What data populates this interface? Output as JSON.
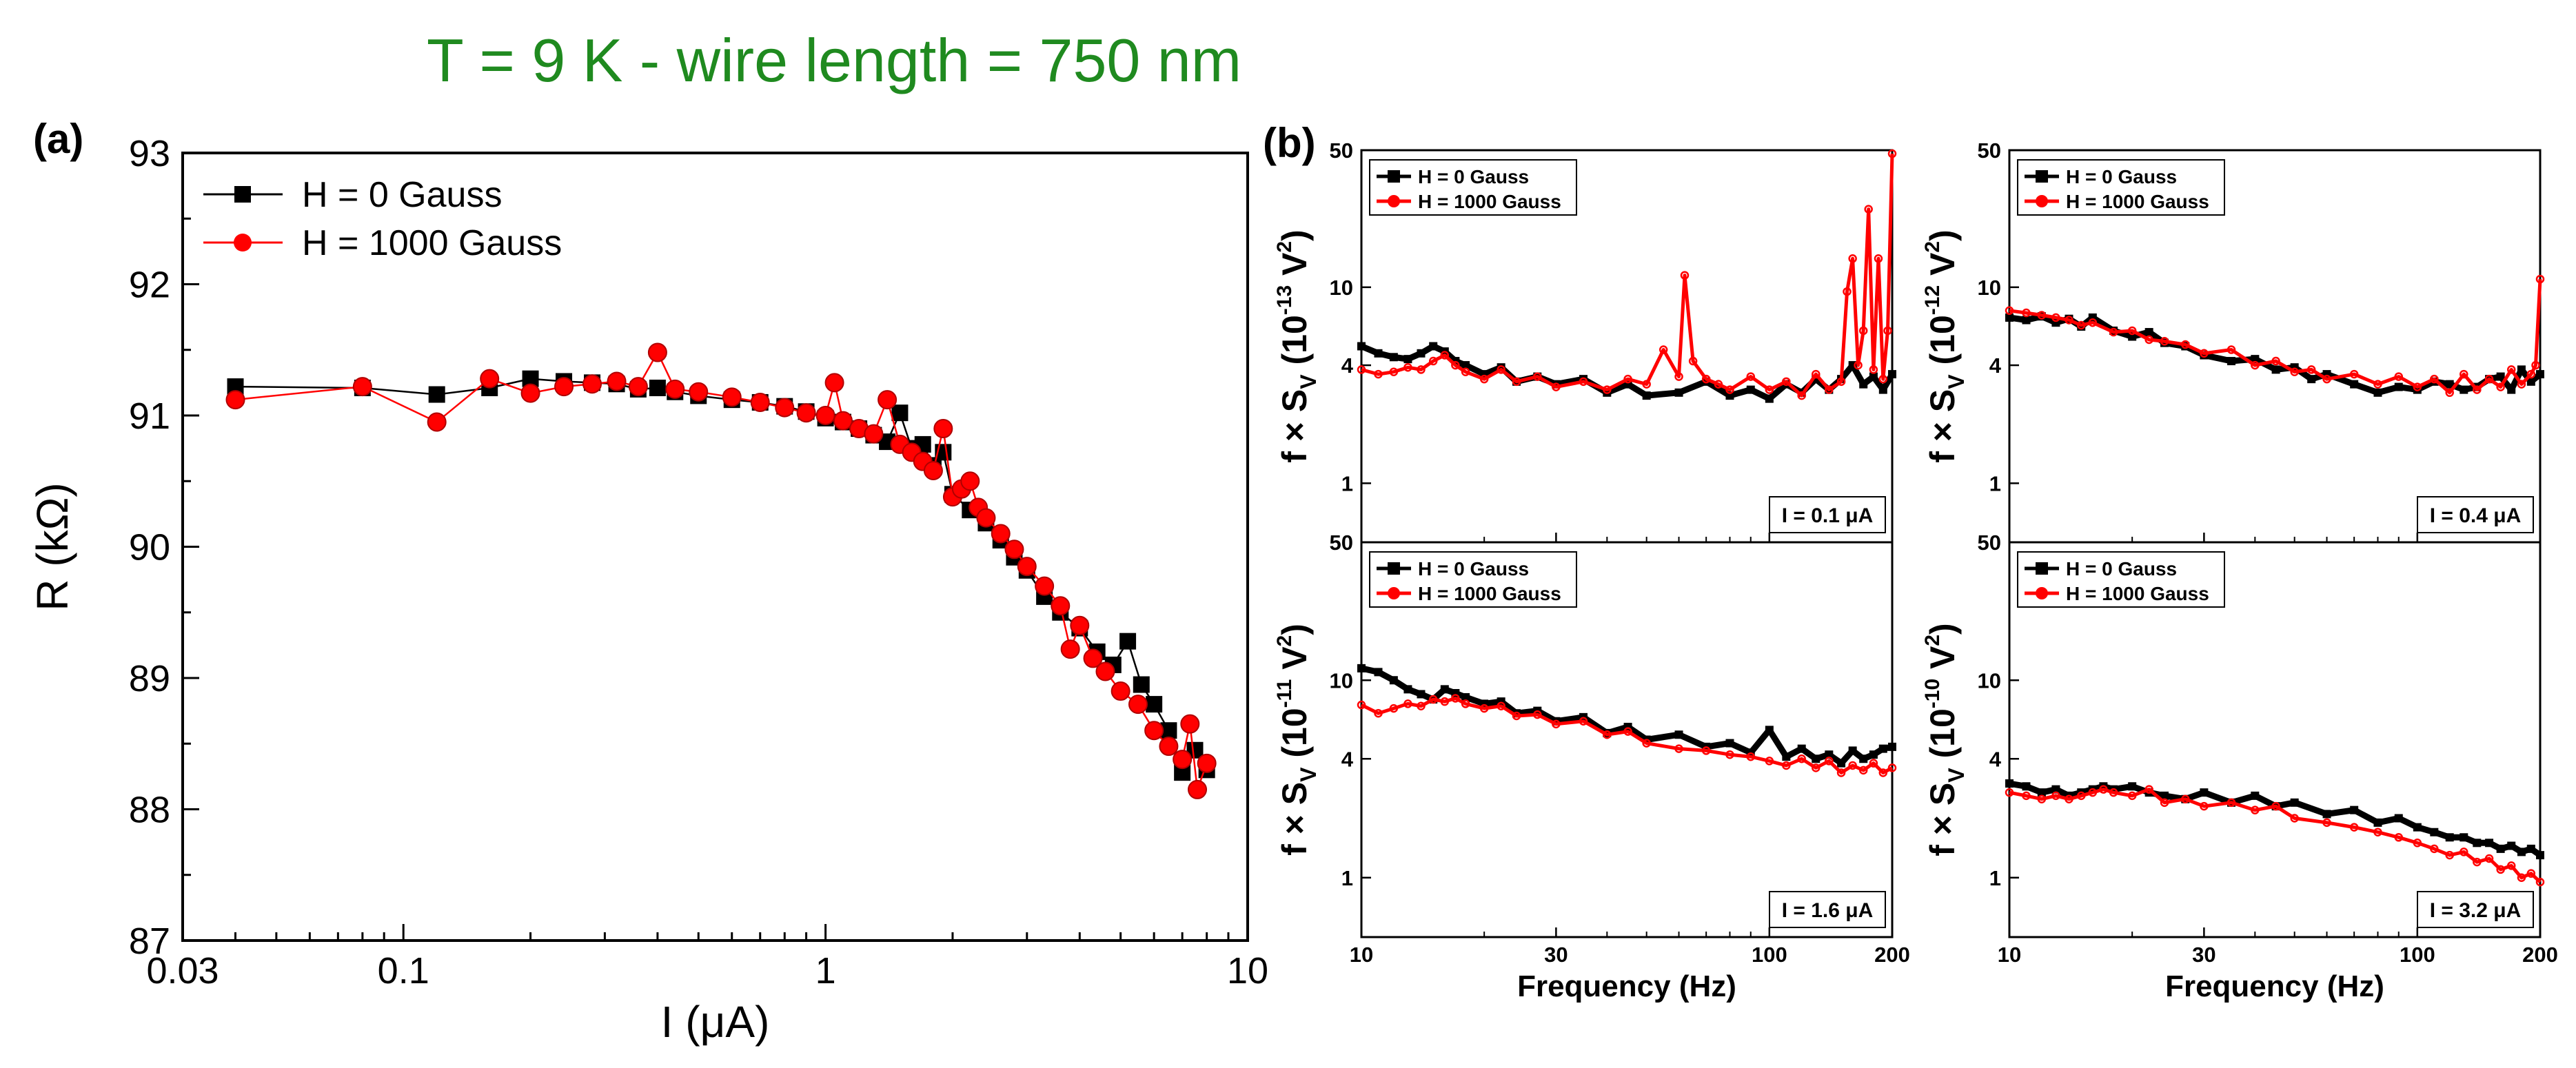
{
  "title": "T = 9 K  -  wire length = 750 nm",
  "colors": {
    "title": "#1f8a1f",
    "series_h0": "#000000",
    "series_h1000": "#ff0000",
    "axes": "#000000"
  },
  "chart_data": [
    {
      "panel_label": "(a)",
      "type": "scatter",
      "xscale": "log",
      "xlabel": "I (μA)",
      "ylabel": "R (kΩ)",
      "xlim": [
        0.03,
        10
      ],
      "ylim": [
        87,
        93
      ],
      "xticks": [
        "0.03",
        "0.1",
        "1",
        "10"
      ],
      "yticks": [
        "87",
        "88",
        "89",
        "90",
        "91",
        "92",
        "93"
      ],
      "legend_position": "top-left",
      "series": [
        {
          "name": "H = 0 Gauss",
          "marker": "square",
          "color": "#000000",
          "x": [
            0.04,
            0.08,
            0.12,
            0.16,
            0.2,
            0.24,
            0.28,
            0.32,
            0.36,
            0.4,
            0.44,
            0.5,
            0.6,
            0.7,
            0.8,
            0.9,
            1.0,
            1.1,
            1.2,
            1.3,
            1.4,
            1.5,
            1.6,
            1.7,
            1.8,
            1.9,
            2.0,
            2.2,
            2.4,
            2.6,
            2.8,
            3.0,
            3.3,
            3.6,
            4.0,
            4.4,
            4.8,
            5.2,
            5.6,
            6.0,
            6.5,
            7.0,
            7.5,
            8.0
          ],
          "y": [
            91.22,
            91.21,
            91.16,
            91.21,
            91.28,
            91.26,
            91.25,
            91.24,
            91.2,
            91.21,
            91.18,
            91.15,
            91.12,
            91.1,
            91.07,
            91.03,
            90.98,
            90.95,
            90.9,
            90.85,
            90.8,
            91.02,
            90.75,
            90.78,
            90.62,
            90.72,
            90.4,
            90.28,
            90.18,
            90.05,
            89.92,
            89.82,
            89.62,
            89.5,
            89.38,
            89.2,
            89.1,
            89.28,
            88.95,
            88.8,
            88.6,
            88.28,
            88.45,
            88.3
          ]
        },
        {
          "name": "H = 1000 Gauss",
          "marker": "circle",
          "color": "#ff0000",
          "x": [
            0.04,
            0.08,
            0.12,
            0.16,
            0.2,
            0.24,
            0.28,
            0.32,
            0.36,
            0.4,
            0.44,
            0.5,
            0.6,
            0.7,
            0.8,
            0.9,
            1.0,
            1.05,
            1.1,
            1.2,
            1.3,
            1.4,
            1.5,
            1.6,
            1.7,
            1.8,
            1.9,
            2.0,
            2.1,
            2.2,
            2.3,
            2.4,
            2.6,
            2.8,
            3.0,
            3.3,
            3.6,
            3.8,
            4.0,
            4.3,
            4.6,
            5.0,
            5.5,
            6.0,
            6.5,
            7.0,
            7.3,
            7.6,
            8.0
          ],
          "y": [
            91.12,
            91.22,
            90.95,
            91.28,
            91.17,
            91.22,
            91.24,
            91.26,
            91.22,
            91.48,
            91.2,
            91.18,
            91.14,
            91.1,
            91.06,
            91.02,
            91.0,
            91.25,
            90.96,
            90.9,
            90.86,
            91.12,
            90.78,
            90.72,
            90.65,
            90.58,
            90.9,
            90.38,
            90.44,
            90.5,
            90.3,
            90.22,
            90.1,
            89.98,
            89.85,
            89.7,
            89.55,
            89.22,
            89.4,
            89.15,
            89.05,
            88.9,
            88.8,
            88.6,
            88.48,
            88.38,
            88.65,
            88.15,
            88.35
          ]
        }
      ]
    },
    {
      "panel_label": "(b)",
      "type": "line",
      "xscale": "log",
      "yscale": "log",
      "xlabel": "Frequency (Hz)",
      "ylabel_prefix": "f × S",
      "ylabel_sub": "V",
      "xlim": [
        10,
        200
      ],
      "ylim": [
        0.5,
        50
      ],
      "xticks": [
        "10",
        "30",
        "100",
        "200"
      ],
      "yticks": [
        "1",
        "4",
        "10",
        "50"
      ],
      "legend": [
        "H = 0 Gauss",
        "H = 1000 Gauss"
      ],
      "subplots": [
        {
          "annotation": "I = 0.1 μA",
          "ylabel_unit": "(10",
          "ylabel_exp": "-13",
          "ylabel_tail": "V",
          "ylabel_pow": "2",
          "ylabel_close": ")",
          "yticks": [
            "1",
            "4",
            "10",
            "50"
          ],
          "series": [
            {
              "name": "H = 0 Gauss",
              "x": [
                10,
                11,
                12,
                13,
                14,
                15,
                16,
                17,
                18,
                20,
                22,
                24,
                27,
                30,
                35,
                40,
                45,
                50,
                60,
                70,
                80,
                90,
                100,
                110,
                120,
                130,
                140,
                150,
                160,
                170,
                180,
                190,
                200
              ],
              "y": [
                5.0,
                4.6,
                4.4,
                4.3,
                4.6,
                5.0,
                4.7,
                4.2,
                4.0,
                3.6,
                3.9,
                3.3,
                3.5,
                3.2,
                3.4,
                2.9,
                3.2,
                2.8,
                2.9,
                3.3,
                2.8,
                3.0,
                2.7,
                3.2,
                2.9,
                3.4,
                3.0,
                3.4,
                4.0,
                3.2,
                3.5,
                3.0,
                3.6
              ]
            },
            {
              "name": "H = 1000 Gauss",
              "x": [
                10,
                11,
                12,
                13,
                14,
                15,
                16,
                17,
                18,
                20,
                22,
                24,
                27,
                30,
                35,
                40,
                45,
                50,
                55,
                60,
                62,
                65,
                70,
                75,
                80,
                90,
                100,
                110,
                120,
                130,
                140,
                150,
                155,
                160,
                165,
                170,
                175,
                180,
                185,
                190,
                195,
                200
              ],
              "y": [
                3.8,
                3.6,
                3.7,
                3.9,
                3.8,
                4.2,
                4.5,
                4.0,
                3.7,
                3.4,
                3.8,
                3.3,
                3.5,
                3.1,
                3.3,
                3.0,
                3.4,
                3.2,
                4.8,
                3.5,
                11.5,
                4.2,
                3.4,
                3.2,
                3.0,
                3.5,
                3.0,
                3.3,
                2.8,
                3.6,
                3.0,
                3.3,
                9.5,
                14.0,
                4.0,
                6.0,
                25.0,
                3.8,
                14.0,
                3.4,
                6.0,
                48.0
              ]
            }
          ]
        },
        {
          "annotation": "I = 0.4 μA",
          "ylabel_unit": "(10",
          "ylabel_exp": "-12",
          "ylabel_tail": "V",
          "ylabel_pow": "2",
          "ylabel_close": ")",
          "yticks": [
            "1",
            "4",
            "10",
            "50"
          ],
          "series": [
            {
              "name": "H = 0 Gauss",
              "x": [
                10,
                11,
                12,
                13,
                14,
                15,
                16,
                18,
                20,
                22,
                24,
                27,
                30,
                35,
                40,
                45,
                50,
                55,
                60,
                70,
                80,
                90,
                100,
                110,
                120,
                130,
                140,
                150,
                160,
                170,
                180,
                190,
                200
              ],
              "y": [
                7.0,
                6.8,
                7.1,
                6.6,
                6.9,
                6.3,
                7.0,
                6.0,
                5.6,
                5.9,
                5.2,
                5.0,
                4.5,
                4.2,
                4.3,
                3.8,
                3.9,
                3.4,
                3.6,
                3.2,
                2.9,
                3.1,
                3.0,
                3.3,
                3.2,
                3.0,
                3.1,
                3.4,
                3.5,
                3.0,
                3.8,
                3.3,
                3.6
              ]
            },
            {
              "name": "H = 1000 Gauss",
              "x": [
                10,
                11,
                12,
                13,
                14,
                15,
                16,
                18,
                20,
                22,
                24,
                27,
                30,
                35,
                40,
                45,
                50,
                55,
                60,
                70,
                80,
                90,
                100,
                110,
                120,
                130,
                140,
                150,
                160,
                170,
                180,
                190,
                195,
                200
              ],
              "y": [
                7.6,
                7.4,
                7.2,
                7.0,
                6.8,
                6.4,
                6.6,
                5.9,
                6.0,
                5.4,
                5.3,
                5.1,
                4.6,
                4.8,
                4.0,
                4.2,
                3.7,
                3.8,
                3.4,
                3.6,
                3.2,
                3.5,
                3.1,
                3.4,
                2.9,
                3.6,
                3.0,
                3.4,
                3.1,
                3.8,
                3.2,
                3.6,
                4.0,
                11.0
              ]
            }
          ]
        },
        {
          "annotation": "I = 1.6 μA",
          "ylabel_unit": "(10",
          "ylabel_exp": "-11",
          "ylabel_tail": "V",
          "ylabel_pow": "2",
          "ylabel_close": ")",
          "yticks": [
            "1",
            "4",
            "10",
            "50"
          ],
          "series": [
            {
              "name": "H = 0 Gauss",
              "x": [
                10,
                11,
                12,
                13,
                14,
                15,
                16,
                17,
                18,
                20,
                22,
                24,
                27,
                30,
                35,
                40,
                45,
                50,
                60,
                70,
                80,
                90,
                100,
                110,
                120,
                130,
                140,
                150,
                160,
                170,
                180,
                190,
                200
              ],
              "y": [
                11.5,
                11.0,
                10.0,
                9.0,
                8.5,
                8.0,
                9.0,
                8.6,
                8.2,
                7.6,
                7.8,
                6.8,
                7.0,
                6.2,
                6.5,
                5.4,
                5.8,
                5.0,
                5.3,
                4.6,
                4.8,
                4.3,
                5.6,
                4.1,
                4.5,
                4.0,
                4.2,
                3.8,
                4.4,
                4.0,
                4.2,
                4.5,
                4.6
              ]
            },
            {
              "name": "H = 1000 Gauss",
              "x": [
                10,
                11,
                12,
                13,
                14,
                15,
                16,
                17,
                18,
                20,
                22,
                24,
                27,
                30,
                35,
                40,
                45,
                50,
                60,
                70,
                80,
                90,
                100,
                110,
                120,
                130,
                140,
                150,
                160,
                170,
                180,
                190,
                200
              ],
              "y": [
                7.5,
                6.8,
                7.2,
                7.6,
                7.4,
                8.0,
                7.8,
                8.1,
                7.6,
                7.2,
                7.4,
                6.6,
                6.7,
                6.0,
                6.2,
                5.3,
                5.5,
                4.8,
                4.5,
                4.4,
                4.2,
                4.1,
                3.9,
                3.7,
                4.0,
                3.6,
                3.9,
                3.4,
                3.7,
                3.5,
                3.8,
                3.4,
                3.6
              ]
            }
          ]
        },
        {
          "annotation": "I = 3.2 μA",
          "ylabel_unit": "(10",
          "ylabel_exp": "-10",
          "ylabel_tail": "V",
          "ylabel_pow": "2",
          "ylabel_close": ")",
          "yticks": [
            "1",
            "4",
            "10",
            "50"
          ],
          "series": [
            {
              "name": "H = 0 Gauss",
              "x": [
                10,
                11,
                12,
                13,
                14,
                15,
                16,
                17,
                18,
                20,
                22,
                24,
                27,
                30,
                35,
                40,
                45,
                50,
                60,
                70,
                80,
                90,
                100,
                110,
                120,
                130,
                140,
                150,
                160,
                170,
                180,
                190,
                200
              ],
              "y": [
                3.0,
                2.9,
                2.7,
                2.8,
                2.6,
                2.7,
                2.8,
                2.9,
                2.8,
                2.9,
                2.7,
                2.6,
                2.5,
                2.7,
                2.4,
                2.6,
                2.3,
                2.4,
                2.1,
                2.2,
                1.9,
                2.0,
                1.8,
                1.7,
                1.6,
                1.6,
                1.5,
                1.5,
                1.4,
                1.45,
                1.35,
                1.4,
                1.3
              ]
            },
            {
              "name": "H = 1000 Gauss",
              "x": [
                10,
                11,
                12,
                13,
                14,
                15,
                16,
                17,
                18,
                20,
                22,
                24,
                27,
                30,
                35,
                40,
                45,
                50,
                60,
                70,
                80,
                90,
                100,
                110,
                120,
                130,
                140,
                150,
                160,
                170,
                180,
                190,
                200
              ],
              "y": [
                2.7,
                2.6,
                2.5,
                2.6,
                2.5,
                2.6,
                2.7,
                2.8,
                2.7,
                2.6,
                2.8,
                2.4,
                2.5,
                2.3,
                2.4,
                2.2,
                2.3,
                2.0,
                1.9,
                1.8,
                1.7,
                1.6,
                1.5,
                1.4,
                1.3,
                1.35,
                1.2,
                1.25,
                1.1,
                1.15,
                1.0,
                1.05,
                0.95
              ]
            }
          ]
        }
      ]
    }
  ]
}
